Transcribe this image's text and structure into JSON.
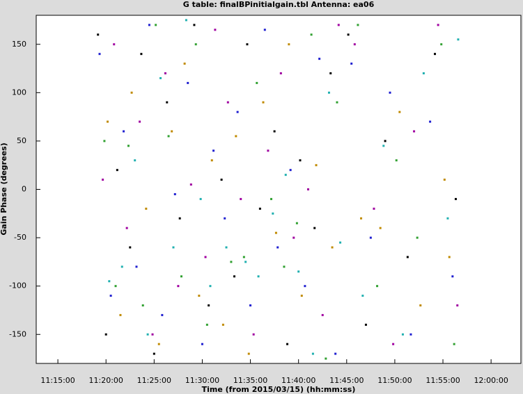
{
  "chart_data": {
    "type": "scatter",
    "title": "G table: finalBPinitialgain.tbl   Antenna: ea06",
    "x_label": "Time (from 2015/03/15) (hh:mm:ss)",
    "y_label": "Gain Phase (degrees)",
    "xlim": [
      40365,
      43386
    ],
    "xticks": [
      {
        "value": 40500,
        "label": "11:15:00"
      },
      {
        "value": 40800,
        "label": "11:20:00"
      },
      {
        "value": 41100,
        "label": "11:25:00"
      },
      {
        "value": 41400,
        "label": "11:30:00"
      },
      {
        "value": 41700,
        "label": "11:35:00"
      },
      {
        "value": 42000,
        "label": "11:40:00"
      },
      {
        "value": 42300,
        "label": "11:45:00"
      },
      {
        "value": 42600,
        "label": "11:50:00"
      },
      {
        "value": 42900,
        "label": "11:55:00"
      },
      {
        "value": 43200,
        "label": "12:00:00"
      }
    ],
    "ylim": [
      -180,
      180
    ],
    "yticks": [
      -150,
      -100,
      -50,
      0,
      50,
      100,
      150
    ],
    "series": [
      {
        "color": "#000000",
        "x": [
          40750,
          40800,
          40870,
          40950,
          41020,
          41100,
          41180,
          41260,
          41350,
          41440,
          41520,
          41600,
          41680,
          41760,
          41850,
          41930,
          42010,
          42100,
          42200,
          42310,
          42420,
          42540,
          42680,
          42850,
          42980
        ],
        "values": [
          160,
          -150,
          20,
          -60,
          140,
          -170,
          90,
          -30,
          170,
          -120,
          10,
          -90,
          150,
          -20,
          60,
          -160,
          30,
          -40,
          120,
          160,
          -140,
          50,
          -70,
          140,
          -10
        ]
      },
      {
        "color": "#1f1fd0",
        "x": [
          40760,
          40830,
          40910,
          40990,
          41070,
          41150,
          41230,
          41310,
          41400,
          41470,
          41540,
          41620,
          41700,
          41790,
          41870,
          41950,
          42040,
          42130,
          42230,
          42330,
          42450,
          42570,
          42700,
          42820,
          42960
        ],
        "values": [
          140,
          -110,
          60,
          -80,
          170,
          -130,
          -5,
          110,
          -160,
          40,
          -30,
          80,
          -120,
          165,
          -60,
          20,
          -100,
          135,
          -170,
          130,
          -50,
          100,
          -150,
          70,
          -90
        ]
      },
      {
        "color": "#a000a0",
        "x": [
          40780,
          40850,
          40930,
          41010,
          41090,
          41170,
          41250,
          41330,
          41420,
          41480,
          41560,
          41640,
          41720,
          41810,
          41890,
          41970,
          42060,
          42150,
          42250,
          42350,
          42470,
          42590,
          42720,
          42870,
          42990
        ],
        "values": [
          10,
          150,
          -40,
          70,
          -150,
          120,
          -100,
          5,
          -70,
          165,
          90,
          -10,
          -150,
          40,
          120,
          -50,
          0,
          -130,
          170,
          150,
          -20,
          -160,
          60,
          170,
          -120
        ]
      },
      {
        "color": "#30a030",
        "x": [
          40790,
          40860,
          40940,
          41030,
          41110,
          41190,
          41270,
          41360,
          41430,
          41580,
          41660,
          41740,
          41830,
          41910,
          41990,
          42080,
          42170,
          42240,
          42370,
          42490,
          42610,
          42740,
          42890,
          42970
        ],
        "values": [
          50,
          -100,
          45,
          -120,
          170,
          55,
          -90,
          150,
          -140,
          -75,
          -70,
          110,
          -10,
          -80,
          -35,
          160,
          -175,
          90,
          170,
          -100,
          30,
          -50,
          150,
          -160
        ]
      },
      {
        "color": "#c08a00",
        "x": [
          40810,
          40890,
          40960,
          41050,
          41130,
          41210,
          41290,
          41380,
          41460,
          41530,
          41610,
          41690,
          41780,
          41860,
          41940,
          42020,
          42110,
          42210,
          42390,
          42510,
          42630,
          42760,
          42910,
          42940
        ],
        "values": [
          70,
          -130,
          100,
          -20,
          -160,
          60,
          130,
          -110,
          30,
          -140,
          55,
          -170,
          90,
          -45,
          150,
          -110,
          25,
          -60,
          -30,
          -40,
          80,
          -120,
          10,
          -70
        ]
      },
      {
        "color": "#20b0b0",
        "x": [
          40820,
          40900,
          40980,
          41060,
          41140,
          41220,
          41300,
          41390,
          41450,
          41550,
          41670,
          41750,
          41840,
          41920,
          42000,
          42090,
          42190,
          42260,
          42400,
          42530,
          42650,
          42780,
          42930,
          42995
        ],
        "values": [
          -95,
          -80,
          30,
          -150,
          115,
          -60,
          175,
          -10,
          -100,
          -60,
          -75,
          -90,
          -25,
          15,
          -85,
          -170,
          100,
          -55,
          -110,
          45,
          -150,
          120,
          -30,
          155
        ]
      }
    ]
  }
}
